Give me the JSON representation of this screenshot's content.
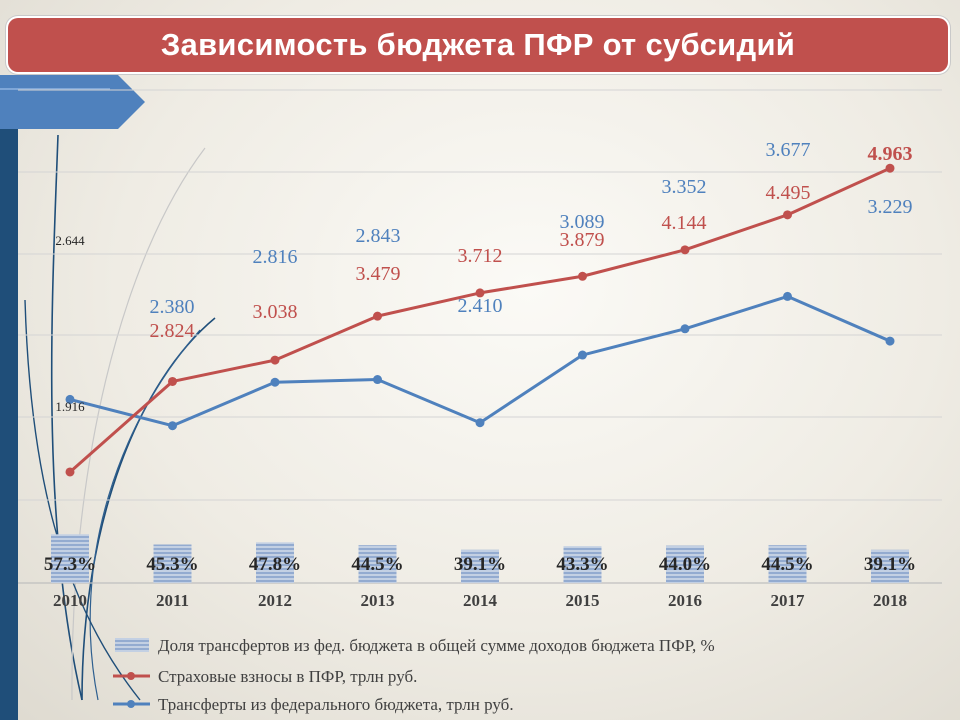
{
  "title": "Зависимость бюджета ПФР от субсидий",
  "colors": {
    "title_bg": "#c0504d",
    "insurance": "#c0504d",
    "transfers": "#4f81bd",
    "share_bar": "#9fb4d3",
    "accent_strip": "#1f4e79"
  },
  "chart_data": {
    "type": "line",
    "categories": [
      "2010",
      "2011",
      "2012",
      "2013",
      "2014",
      "2015",
      "2016",
      "2017",
      "2018"
    ],
    "share_labels": [
      "57.3%",
      "45.3%",
      "47.8%",
      "44.5%",
      "39.1%",
      "43.3%",
      "44.0%",
      "44.5%",
      "39.1%"
    ],
    "series": [
      {
        "name": "Доля трансфертов из фед. бюджета в общей сумме доходов бюджета ПФР, %",
        "kind": "bar",
        "values": [
          57.3,
          45.3,
          47.8,
          44.5,
          39.1,
          43.3,
          44.0,
          44.5,
          39.1
        ]
      },
      {
        "name": "Страховые взносы в ПФР, трлн руб.",
        "kind": "line",
        "values": [
          1.916,
          2.824,
          3.038,
          3.479,
          3.712,
          3.879,
          4.144,
          4.495,
          4.963
        ],
        "labels": [
          "1.916",
          "2.824",
          "3.038",
          "3.479",
          "3.712",
          "3.879",
          "4.144",
          "4.495",
          "4.963"
        ]
      },
      {
        "name": "Трансферты из федерального бюджета, трлн руб.",
        "kind": "line",
        "values": [
          2.644,
          2.38,
          2.816,
          2.843,
          2.41,
          3.089,
          3.352,
          3.677,
          3.229
        ],
        "labels": [
          "2.644",
          "2.380",
          "2.816",
          "2.843",
          "2.410",
          "3.089",
          "3.352",
          "3.677",
          "3.229"
        ]
      }
    ],
    "grid": true,
    "legend_position": "bottom-left"
  }
}
